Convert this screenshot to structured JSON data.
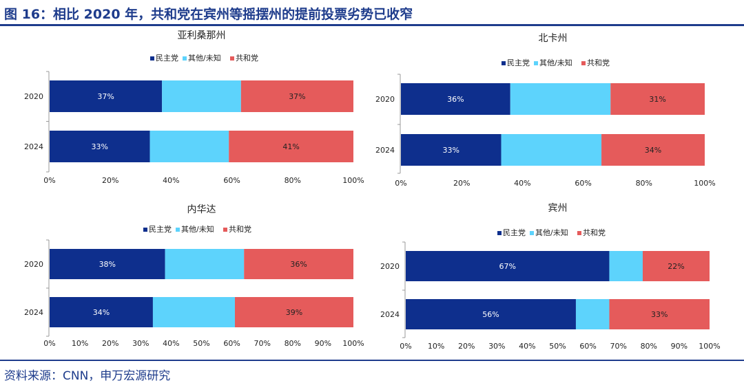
{
  "title": "图 16：相比 2020 年，共和党在宾州等摇摆州的提前投票劣势已收窄",
  "source": "资料来源：CNN，申万宏源研究",
  "colors": {
    "dem": "#0e2f8d",
    "other": "#5dd3fc",
    "rep": "#e55b5b",
    "accent": "#1e3c8c"
  },
  "chart_data": [
    {
      "type": "bar",
      "orientation": "horizontal",
      "stacked": true,
      "title": "亚利桑那州",
      "categories": [
        "2020",
        "2024"
      ],
      "series": [
        {
          "name": "民主党",
          "values": [
            37,
            33
          ],
          "labels": [
            "37%",
            "33%"
          ]
        },
        {
          "name": "其他/未知",
          "values": [
            26,
            26
          ],
          "labels": [
            "",
            ""
          ]
        },
        {
          "name": "共和党",
          "values": [
            37,
            41
          ],
          "labels": [
            "37%",
            "41%"
          ]
        }
      ],
      "xlim": [
        0,
        100
      ],
      "xticks": [
        0,
        20,
        40,
        60,
        80,
        100
      ],
      "xtick_labels": [
        "0%",
        "20%",
        "40%",
        "60%",
        "80%",
        "100%"
      ],
      "legend": "top",
      "grid": false
    },
    {
      "type": "bar",
      "orientation": "horizontal",
      "stacked": true,
      "title": "北卡州",
      "categories": [
        "2020",
        "2024"
      ],
      "series": [
        {
          "name": "民主党",
          "values": [
            36,
            33
          ],
          "labels": [
            "36%",
            "33%"
          ]
        },
        {
          "name": "其他/未知",
          "values": [
            33,
            33
          ],
          "labels": [
            "",
            ""
          ]
        },
        {
          "name": "共和党",
          "values": [
            31,
            34
          ],
          "labels": [
            "31%",
            "34%"
          ]
        }
      ],
      "xlim": [
        0,
        100
      ],
      "xticks": [
        0,
        20,
        40,
        60,
        80,
        100
      ],
      "xtick_labels": [
        "0%",
        "20%",
        "40%",
        "60%",
        "80%",
        "100%"
      ],
      "legend": "top",
      "grid": false
    },
    {
      "type": "bar",
      "orientation": "horizontal",
      "stacked": true,
      "title": "内华达",
      "categories": [
        "2020",
        "2024"
      ],
      "series": [
        {
          "name": "民主党",
          "values": [
            38,
            34
          ],
          "labels": [
            "38%",
            "34%"
          ]
        },
        {
          "name": "其他/未知",
          "values": [
            26,
            27
          ],
          "labels": [
            "",
            ""
          ]
        },
        {
          "name": "共和党",
          "values": [
            36,
            39
          ],
          "labels": [
            "36%",
            "39%"
          ]
        }
      ],
      "xlim": [
        0,
        100
      ],
      "xticks": [
        0,
        10,
        20,
        30,
        40,
        50,
        60,
        70,
        80,
        90,
        100
      ],
      "xtick_labels": [
        "0%",
        "10%",
        "20%",
        "30%",
        "40%",
        "50%",
        "60%",
        "70%",
        "80%",
        "90%",
        "100%"
      ],
      "legend": "top",
      "grid": false
    },
    {
      "type": "bar",
      "orientation": "horizontal",
      "stacked": true,
      "title": "宾州",
      "categories": [
        "2020",
        "2024"
      ],
      "series": [
        {
          "name": "民主党",
          "values": [
            67,
            56
          ],
          "labels": [
            "67%",
            "56%"
          ]
        },
        {
          "name": "其他/未知",
          "values": [
            11,
            11
          ],
          "labels": [
            "",
            ""
          ]
        },
        {
          "name": "共和党",
          "values": [
            22,
            33
          ],
          "labels": [
            "22%",
            "33%"
          ]
        }
      ],
      "xlim": [
        0,
        100
      ],
      "xticks": [
        0,
        10,
        20,
        30,
        40,
        50,
        60,
        70,
        80,
        90,
        100
      ],
      "xtick_labels": [
        "0%",
        "10%",
        "20%",
        "30%",
        "40%",
        "50%",
        "60%",
        "70%",
        "80%",
        "90%",
        "100%"
      ],
      "legend": "top",
      "grid": false
    }
  ]
}
